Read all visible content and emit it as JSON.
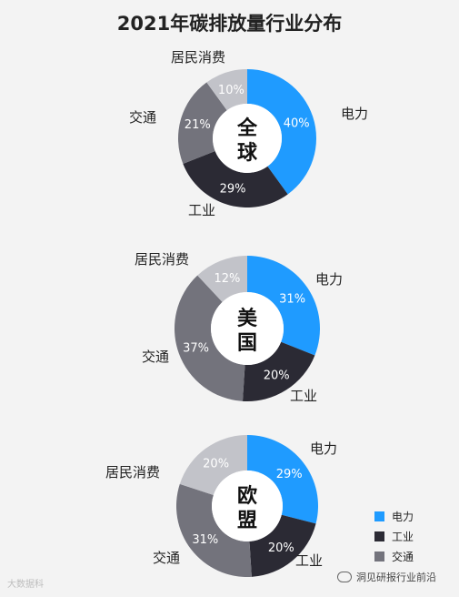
{
  "chart_data": [
    {
      "type": "donut",
      "title": "2021年碳排放量行业分布",
      "center_label": [
        "全",
        "球"
      ],
      "slices": [
        {
          "label": "电力",
          "value": 40,
          "value_text": "40%",
          "color": "#1f9bff"
        },
        {
          "label": "工业",
          "value": 29,
          "value_text": "29%",
          "color": "#2b2a34"
        },
        {
          "label": "交通",
          "value": 21,
          "value_text": "21%",
          "color": "#73737c"
        },
        {
          "label": "居民消费",
          "value": 10,
          "value_text": "10%",
          "color": "#c2c3c9"
        }
      ]
    },
    {
      "type": "donut",
      "center_label": [
        "美",
        "国"
      ],
      "slices": [
        {
          "label": "电力",
          "value": 31,
          "value_text": "31%",
          "color": "#1f9bff"
        },
        {
          "label": "工业",
          "value": 20,
          "value_text": "20%",
          "color": "#2b2a34"
        },
        {
          "label": "交通",
          "value": 37,
          "value_text": "37%",
          "color": "#73737c"
        },
        {
          "label": "居民消费",
          "value": 12,
          "value_text": "12%",
          "color": "#c2c3c9"
        }
      ]
    },
    {
      "type": "donut",
      "center_label": [
        "欧",
        "盟"
      ],
      "slices": [
        {
          "label": "电力",
          "value": 29,
          "value_text": "29%",
          "color": "#1f9bff"
        },
        {
          "label": "工业",
          "value": 20,
          "value_text": "20%",
          "color": "#2b2a34"
        },
        {
          "label": "交通",
          "value": 31,
          "value_text": "31%",
          "color": "#73737c"
        },
        {
          "label": "居民消费",
          "value": 20,
          "value_text": "20%",
          "color": "#c2c3c9"
        }
      ]
    }
  ],
  "legend": [
    {
      "label": "电力",
      "color": "#1f9bff"
    },
    {
      "label": "工业",
      "color": "#2b2a34"
    },
    {
      "label": "交通",
      "color": "#73737c"
    }
  ],
  "watermark_left": "大数据科",
  "watermark_right": "洞见研报行业前沿"
}
